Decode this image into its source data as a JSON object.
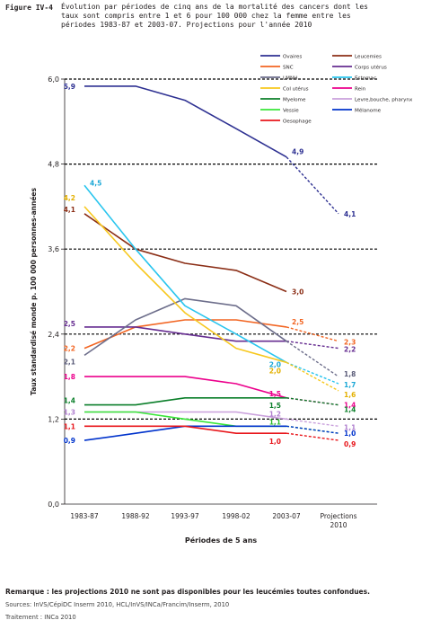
{
  "figure": {
    "label": "Figure IV-4",
    "title_lines": [
      "Évolution par périodes de cinq ans de la mortalité des cancers dont les",
      "taux sont compris entre 1 et 6 pour 100 000 chez la femme entre les",
      "périodes 1983-87 et 2003-07. Projections pour l'année 2010"
    ]
  },
  "chart_data": {
    "type": "line",
    "ylabel": "Taux standardisé monde p. 100 000 personnes-années",
    "xlabel": "Périodes de 5 ans",
    "categories": [
      "1983-87",
      "1988-92",
      "1993-97",
      "1998-02",
      "2003-07",
      "Projections 2010"
    ],
    "y_ticks": [
      "0,0",
      "1,2",
      "2,4",
      "3,6",
      "4,8",
      "6,0"
    ],
    "ylim": [
      0,
      6.0
    ],
    "series": [
      {
        "name": "Ovaires",
        "color": "#2e3192",
        "values": [
          5.9,
          5.9,
          5.7,
          5.3,
          4.9,
          4.1
        ],
        "labels": {
          "0": "5,9",
          "4": "4,9",
          "5": "4,1"
        },
        "label_color": "#2e3192"
      },
      {
        "name": "Leucemies",
        "color": "#8b2e16",
        "values": [
          4.1,
          3.6,
          3.4,
          3.3,
          3.0,
          null
        ],
        "labels": {
          "0": "4,1",
          "4": "3,0"
        },
        "label_color": "#8b2e16"
      },
      {
        "name": "SNC",
        "color": "#f26522",
        "values": [
          2.2,
          2.5,
          2.6,
          2.6,
          2.5,
          2.3
        ],
        "labels": {
          "0": "2,2",
          "4": "2,5",
          "5": "2,3"
        },
        "label_color": "#f26522"
      },
      {
        "name": "Corps utérus",
        "color": "#662d91",
        "values": [
          2.5,
          2.5,
          2.4,
          2.3,
          2.3,
          2.2
        ],
        "labels": {
          "0": "2,5",
          "5": "2,2"
        },
        "label_color": "#662d91"
      },
      {
        "name": "LMNH",
        "color": "#6d6e8b",
        "values": [
          2.1,
          2.6,
          2.9,
          2.8,
          2.3,
          1.8
        ],
        "labels": {
          "0": "2,1",
          "5": "1,8"
        },
        "label_color": "#5a5b78"
      },
      {
        "name": "Estomac",
        "color": "#29c5ee",
        "values": [
          4.5,
          3.6,
          2.8,
          2.4,
          2.0,
          1.7
        ],
        "labels": {
          "0": "4,5",
          "4": "2,0",
          "5": "1,7"
        },
        "label_color": "#1aa7d6"
      },
      {
        "name": "Col utérus",
        "color": "#f7c81e",
        "values": [
          4.2,
          3.4,
          2.7,
          2.2,
          2.0,
          1.6
        ],
        "labels": {
          "0": "4,2",
          "4": "2,0",
          "5": "1,6"
        },
        "label_color": "#e3b000"
      },
      {
        "name": "Rein",
        "color": "#ec008c",
        "values": [
          1.8,
          1.8,
          1.8,
          1.7,
          1.5,
          1.4
        ],
        "labels": {
          "0": "1,8",
          "4": "1,5",
          "5": "1,4"
        },
        "label_color": "#ec008c"
      },
      {
        "name": "Myelome",
        "color": "#0b7f2a",
        "values": [
          1.4,
          1.4,
          1.5,
          1.5,
          1.5,
          1.4
        ],
        "labels": {
          "0": "1,4",
          "4": "1,5",
          "5": "1,4"
        },
        "label_color": "#0b7f2a"
      },
      {
        "name": "Levre,bouche, pharynx",
        "color": "#c9a0dc",
        "values": [
          1.3,
          1.3,
          1.3,
          1.3,
          1.2,
          1.1
        ],
        "labels": {
          "0": "1,3",
          "4": "1,2",
          "5": "1,1"
        },
        "label_color": "#b07fcf"
      },
      {
        "name": "Vessie",
        "color": "#39e639",
        "values": [
          1.3,
          1.3,
          1.2,
          1.1,
          1.1,
          1.0
        ],
        "labels": {
          "4": "1,1"
        },
        "label_color": "#2bb82b"
      },
      {
        "name": "Mélanome",
        "color": "#0033cc",
        "values": [
          0.9,
          1.0,
          1.1,
          1.1,
          1.1,
          1.0
        ],
        "labels": {
          "0": "0,9",
          "5": "1,0"
        },
        "label_color": "#0033cc"
      },
      {
        "name": "Oesophage",
        "color": "#e8161b",
        "values": [
          1.1,
          1.1,
          1.1,
          1.0,
          1.0,
          0.9
        ],
        "labels": {
          "0": "1,1",
          "4": "1,0",
          "5": "0,9"
        },
        "label_color": "#e8161b"
      }
    ],
    "legend_placement": "top-right",
    "grid": "dashed horizontal lines at major ticks"
  },
  "notes": {
    "remark": "Remarque : les projections 2010 ne sont pas disponibles pour les leucémies toutes confondues.",
    "sources": "Sources: InVS/CépiDC Inserm 2010, HCL/InVS/INCa/Francim/Inserm, 2010",
    "traitement": "Traitement : INCa 2010"
  }
}
